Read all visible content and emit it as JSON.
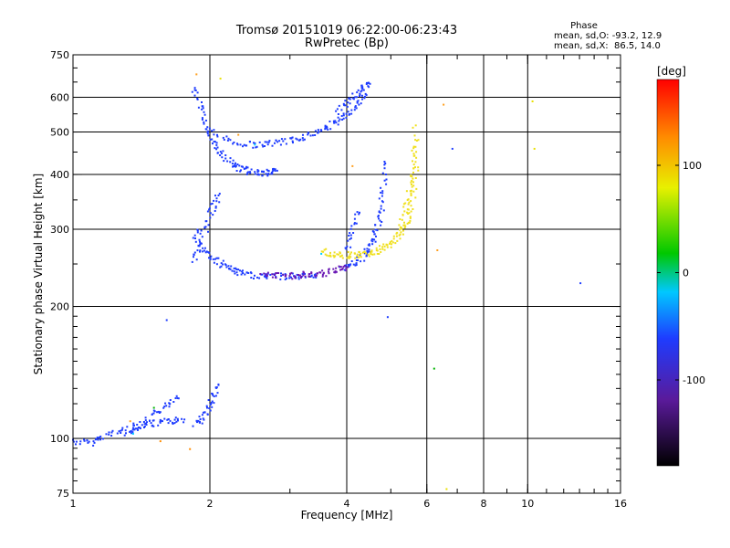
{
  "chart_data": {
    "type": "scatter",
    "title": "Tromsø 20151019 06:22:00-06:23:43",
    "subtitle": "RwPretec (Bp)",
    "xlabel": "Frequency [MHz]",
    "ylabel": "Stationary phase Virtual Height [km]",
    "xscale": "log",
    "yscale": "log",
    "xlim": [
      1,
      16
    ],
    "ylim": [
      75,
      750
    ],
    "xticks": [
      1,
      2,
      4,
      6,
      8,
      10,
      16
    ],
    "xtick_labels": [
      "1",
      "2",
      "4",
      "6",
      "8",
      "10",
      "16"
    ],
    "yticks": [
      75,
      100,
      200,
      300,
      400,
      500,
      600,
      750
    ],
    "ytick_labels": [
      "75",
      "100",
      "200",
      "300",
      "400",
      "500",
      "600",
      "750"
    ],
    "vgrid": [
      2,
      4,
      6,
      8,
      10
    ],
    "hgrid": [
      100,
      200,
      300,
      400,
      500,
      600
    ],
    "phase_stats": {
      "title": "Phase",
      "o_line": "mean, sd,O: -93.2, 12.9",
      "x_line": "mean, sd,X:  86.5, 14.0"
    },
    "colorbar": {
      "label": "[deg]",
      "range": [
        -180,
        180
      ],
      "ticks": [
        100,
        0,
        -100
      ],
      "tick_labels": [
        "100",
        "0",
        "-100"
      ]
    },
    "series": [
      {
        "color": "#1e3cff",
        "segments": [
          {
            "x": [
              1.0,
              1.08,
              1.15,
              1.25,
              1.35,
              1.45,
              1.55,
              1.65,
              1.75
            ],
            "y": [
              99,
              98,
              101,
              104,
              107,
              108,
              109,
              110,
              111
            ]
          },
          {
            "x": [
              1.3,
              1.4,
              1.5,
              1.6,
              1.7
            ],
            "y": [
              103,
              108,
              114,
              119,
              124
            ]
          },
          {
            "x": [
              1.85,
              1.92,
              1.98,
              2.03,
              2.08
            ],
            "y": [
              108,
              112,
              118,
              125,
              133
            ]
          },
          {
            "x": [
              1.84,
              1.9,
              1.96,
              2.02,
              2.1,
              2.2,
              2.3,
              2.4,
              2.5,
              2.6,
              2.7,
              2.8
            ],
            "y": [
              630,
              580,
              520,
              480,
              450,
              430,
              418,
              410,
              405,
              405,
              407,
              410
            ]
          },
          {
            "x": [
              2.0,
              2.2,
              2.4,
              2.6,
              2.8,
              3.0,
              3.2,
              3.4,
              3.6,
              3.8,
              4.0,
              4.2,
              4.4
            ],
            "y": [
              505,
              480,
              470,
              470,
              475,
              480,
              490,
              500,
              515,
              530,
              550,
              580,
              610
            ]
          },
          {
            "x": [
              3.8,
              4.0,
              4.2,
              4.35,
              4.45
            ],
            "y": [
              560,
              590,
              615,
              635,
              650
            ]
          },
          {
            "x": [
              1.84,
              1.9,
              2.0,
              2.1,
              2.2,
              2.3,
              2.45,
              2.6,
              2.8,
              3.0,
              3.2,
              3.4
            ],
            "y": [
              300,
              275,
              260,
              252,
              245,
              240,
              237,
              235,
              235,
              235,
              236,
              238
            ]
          },
          {
            "x": [
              1.84,
              1.9,
              1.97,
              2.02,
              2.08
            ],
            "y": [
              255,
              280,
              310,
              340,
              360
            ]
          },
          {
            "x": [
              3.9,
              4.1,
              4.3,
              4.45,
              4.55,
              4.65,
              4.72,
              4.78,
              4.82
            ],
            "y": [
              245,
              250,
              258,
              270,
              285,
              305,
              330,
              370,
              430
            ]
          },
          {
            "x": [
              4.0,
              4.1,
              4.2
            ],
            "y": [
              270,
              300,
              330
            ]
          }
        ]
      },
      {
        "color": "#6a18b4",
        "segments": [
          {
            "x": [
              2.6,
              2.8,
              3.0,
              3.2,
              3.4,
              3.6,
              3.8,
              4.0
            ],
            "y": [
              236,
              236,
              236,
              237,
              238,
              240,
              243,
              247
            ]
          }
        ]
      },
      {
        "color": "#f0e020",
        "segments": [
          {
            "x": [
              3.5,
              3.7,
              3.9,
              4.1,
              4.3,
              4.5,
              4.7,
              4.9,
              5.1,
              5.3,
              5.45,
              5.55,
              5.62,
              5.68
            ],
            "y": [
              268,
              265,
              263,
              263,
              264,
              266,
              270,
              276,
              285,
              298,
              320,
              350,
              400,
              480
            ]
          },
          {
            "x": [
              5.2,
              5.35,
              5.5,
              5.6,
              5.65
            ],
            "y": [
              300,
              330,
              370,
              420,
              520
            ]
          }
        ]
      }
    ],
    "scattered_points": [
      {
        "x": 1.33,
        "y": 110,
        "color": "#ffa020"
      },
      {
        "x": 1.35,
        "y": 103,
        "color": "#00d0ff"
      },
      {
        "x": 1.5,
        "y": 118,
        "color": "#00b400"
      },
      {
        "x": 1.55,
        "y": 99,
        "color": "#ff8c00"
      },
      {
        "x": 1.6,
        "y": 187,
        "color": "#1e3cff"
      },
      {
        "x": 1.8,
        "y": 95,
        "color": "#ff8c00"
      },
      {
        "x": 1.86,
        "y": 680,
        "color": "#ffa020"
      },
      {
        "x": 2.1,
        "y": 665,
        "color": "#e8e000"
      },
      {
        "x": 2.3,
        "y": 495,
        "color": "#ffa020"
      },
      {
        "x": 2.5,
        "y": 470,
        "color": "#00d0ff"
      },
      {
        "x": 3.5,
        "y": 265,
        "color": "#00d0ff"
      },
      {
        "x": 4.1,
        "y": 420,
        "color": "#ffa020"
      },
      {
        "x": 4.9,
        "y": 190,
        "color": "#1e3cff"
      },
      {
        "x": 6.2,
        "y": 145,
        "color": "#00b400"
      },
      {
        "x": 6.3,
        "y": 270,
        "color": "#ffa020"
      },
      {
        "x": 6.5,
        "y": 580,
        "color": "#ffa020"
      },
      {
        "x": 6.8,
        "y": 460,
        "color": "#1e3cff"
      },
      {
        "x": 6.6,
        "y": 77,
        "color": "#e8e000"
      },
      {
        "x": 10.2,
        "y": 590,
        "color": "#e8e000"
      },
      {
        "x": 10.3,
        "y": 460,
        "color": "#e8e000"
      },
      {
        "x": 13.0,
        "y": 227,
        "color": "#1e3cff"
      }
    ]
  }
}
